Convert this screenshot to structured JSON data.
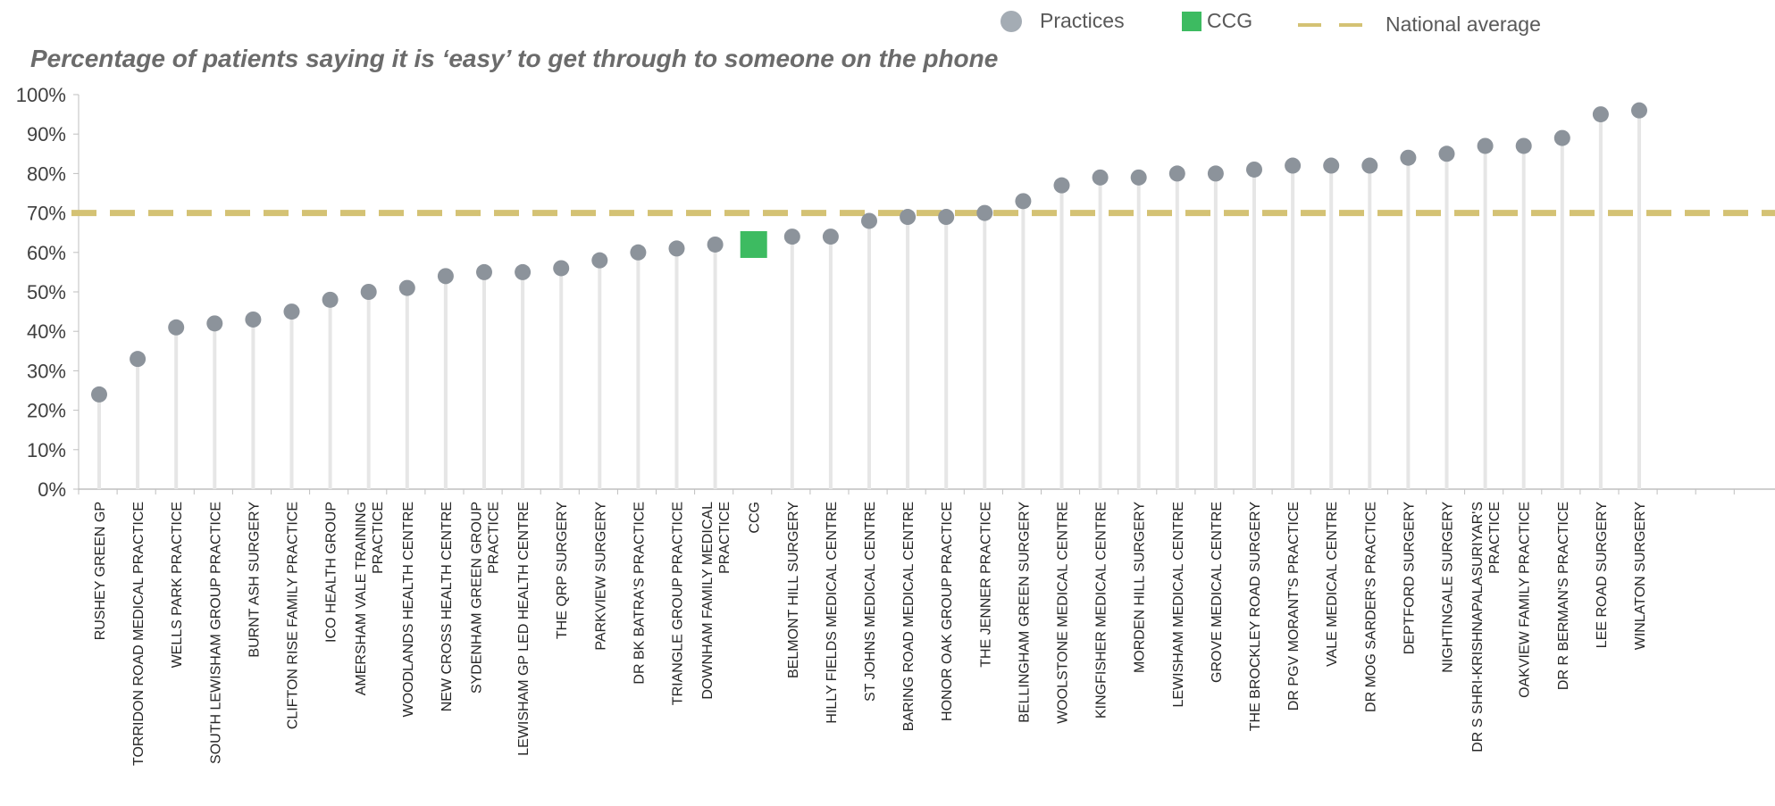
{
  "legend": {
    "practices_label": "Practices",
    "ccg_label": "CCG",
    "national_label": "National average"
  },
  "colors": {
    "practice_marker": "#8c939b",
    "stem": "#e6e6e6",
    "ccg_marker": "#3dbb61",
    "national_line": "#d4c274",
    "axis": "#bfbfbf"
  },
  "chart_data": {
    "type": "scatter",
    "title": "Percentage of patients saying it is ‘easy’ to get through to someone on the phone",
    "xlabel": "",
    "ylabel": "",
    "ylim": [
      0,
      100
    ],
    "y_ticks": [
      "0%",
      "10%",
      "20%",
      "30%",
      "40%",
      "50%",
      "60%",
      "70%",
      "80%",
      "90%",
      "100%"
    ],
    "reference_line": {
      "name": "National average",
      "value": 70
    },
    "grid": false,
    "legend_position": "top-right",
    "categories": [
      [
        "RUSHEY GREEN GP"
      ],
      [
        "TORRIDON ROAD MEDICAL PRACTICE"
      ],
      [
        "WELLS PARK PRACTICE"
      ],
      [
        "SOUTH LEWISHAM GROUP PRACTICE"
      ],
      [
        "BURNT ASH SURGERY"
      ],
      [
        "CLIFTON RISE FAMILY PRACTICE"
      ],
      [
        "ICO HEALTH GROUP"
      ],
      [
        "AMERSHAM VALE TRAINING",
        "PRACTICE"
      ],
      [
        "WOODLANDS HEALTH CENTRE"
      ],
      [
        "NEW CROSS HEALTH CENTRE"
      ],
      [
        "SYDENHAM GREEN GROUP",
        "PRACTICE"
      ],
      [
        "LEWISHAM GP LED HEALTH CENTRE"
      ],
      [
        "THE QRP SURGERY"
      ],
      [
        "PARKVIEW SURGERY"
      ],
      [
        "DR BK BATRA'S PRACTICE"
      ],
      [
        "TRIANGLE GROUP PRACTICE"
      ],
      [
        "DOWNHAM FAMILY MEDICAL",
        "PRACTICE"
      ],
      [
        "CCG"
      ],
      [
        "BELMONT HILL SURGERY"
      ],
      [
        "HILLY FIELDS MEDICAL CENTRE"
      ],
      [
        "ST JOHNS MEDICAL CENTRE"
      ],
      [
        "BARING ROAD MEDICAL CENTRE"
      ],
      [
        "HONOR OAK GROUP PRACTICE"
      ],
      [
        "THE JENNER PRACTICE"
      ],
      [
        "BELLINGHAM GREEN SURGERY"
      ],
      [
        "WOOLSTONE MEDICAL CENTRE"
      ],
      [
        "KINGFISHER MEDICAL CENTRE"
      ],
      [
        "MORDEN HILL SURGERY"
      ],
      [
        "LEWISHAM MEDICAL CENTRE"
      ],
      [
        "GROVE MEDICAL CENTRE"
      ],
      [
        "THE BROCKLEY ROAD SURGERY"
      ],
      [
        "DR PGV MORANT'S PRACTICE"
      ],
      [
        "VALE MEDICAL CENTRE"
      ],
      [
        "DR MOG SARDER'S PRACTICE"
      ],
      [
        "DEPTFORD SURGERY"
      ],
      [
        "NIGHTINGALE SURGERY"
      ],
      [
        "DR S SHRI-KRISHNAPALASURIYAR'S",
        "PRACTICE"
      ],
      [
        "OAKVIEW FAMILY PRACTICE"
      ],
      [
        "DR R BERMAN'S PRACTICE"
      ],
      [
        "LEE ROAD SURGERY"
      ],
      [
        "WINLATON SURGERY"
      ]
    ],
    "values": [
      24,
      33,
      41,
      42,
      43,
      45,
      48,
      50,
      51,
      54,
      55,
      55,
      56,
      58,
      60,
      61,
      62,
      62,
      64,
      64,
      68,
      69,
      69,
      70,
      73,
      77,
      79,
      79,
      80,
      80,
      81,
      82,
      82,
      82,
      84,
      85,
      87,
      87,
      89,
      95,
      96
    ],
    "highlight_index": 17,
    "series": [
      {
        "name": "Practices",
        "marker": "circle"
      },
      {
        "name": "CCG",
        "marker": "square"
      }
    ]
  }
}
